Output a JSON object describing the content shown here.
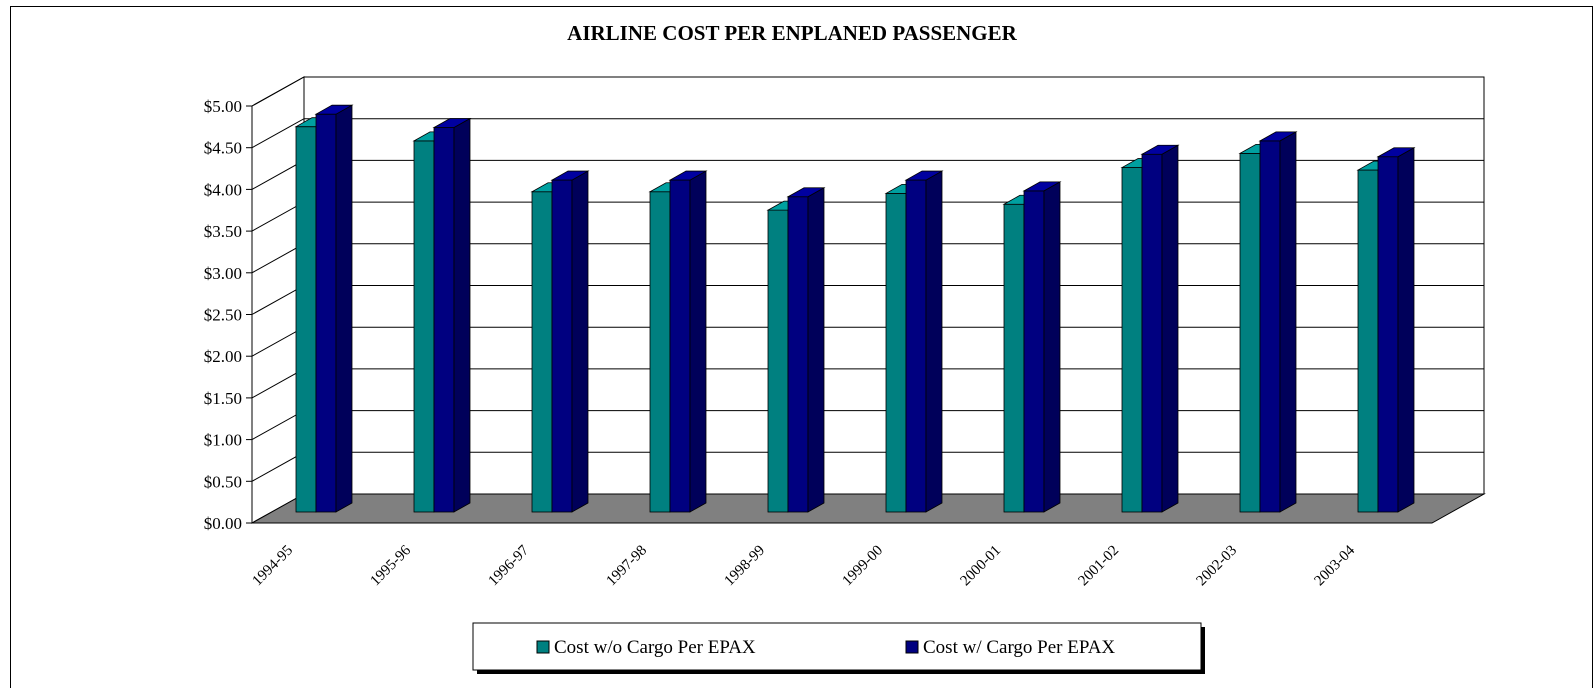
{
  "chart_data": {
    "type": "bar",
    "style": "3d-clustered-column",
    "title": "AIRLINE COST PER ENPLANED PASSENGER",
    "xlabel": "",
    "ylabel": "",
    "categories": [
      "1994-95",
      "1995-96",
      "1996-97",
      "1997-98",
      "1998-99",
      "1999-00",
      "2000-01",
      "2001-02",
      "2002-03",
      "2003-04"
    ],
    "series": [
      {
        "name": "Cost w/o Cargo Per EPAX",
        "color": "#008080",
        "values": [
          4.62,
          4.45,
          3.84,
          3.84,
          3.62,
          3.82,
          3.69,
          4.13,
          4.3,
          4.1
        ]
      },
      {
        "name": "Cost w/ Cargo Per EPAX",
        "color": "#000080",
        "values": [
          4.77,
          4.61,
          3.98,
          3.98,
          3.78,
          3.98,
          3.85,
          4.29,
          4.45,
          4.26
        ]
      }
    ],
    "yticks": [
      "$0.00",
      "$0.50",
      "$1.00",
      "$1.50",
      "$2.00",
      "$2.50",
      "$3.00",
      "$3.50",
      "$4.00",
      "$4.50",
      "$5.00"
    ],
    "ylim": [
      0,
      5
    ],
    "grid": true,
    "legend_position": "bottom",
    "floor_color": "#808080"
  }
}
